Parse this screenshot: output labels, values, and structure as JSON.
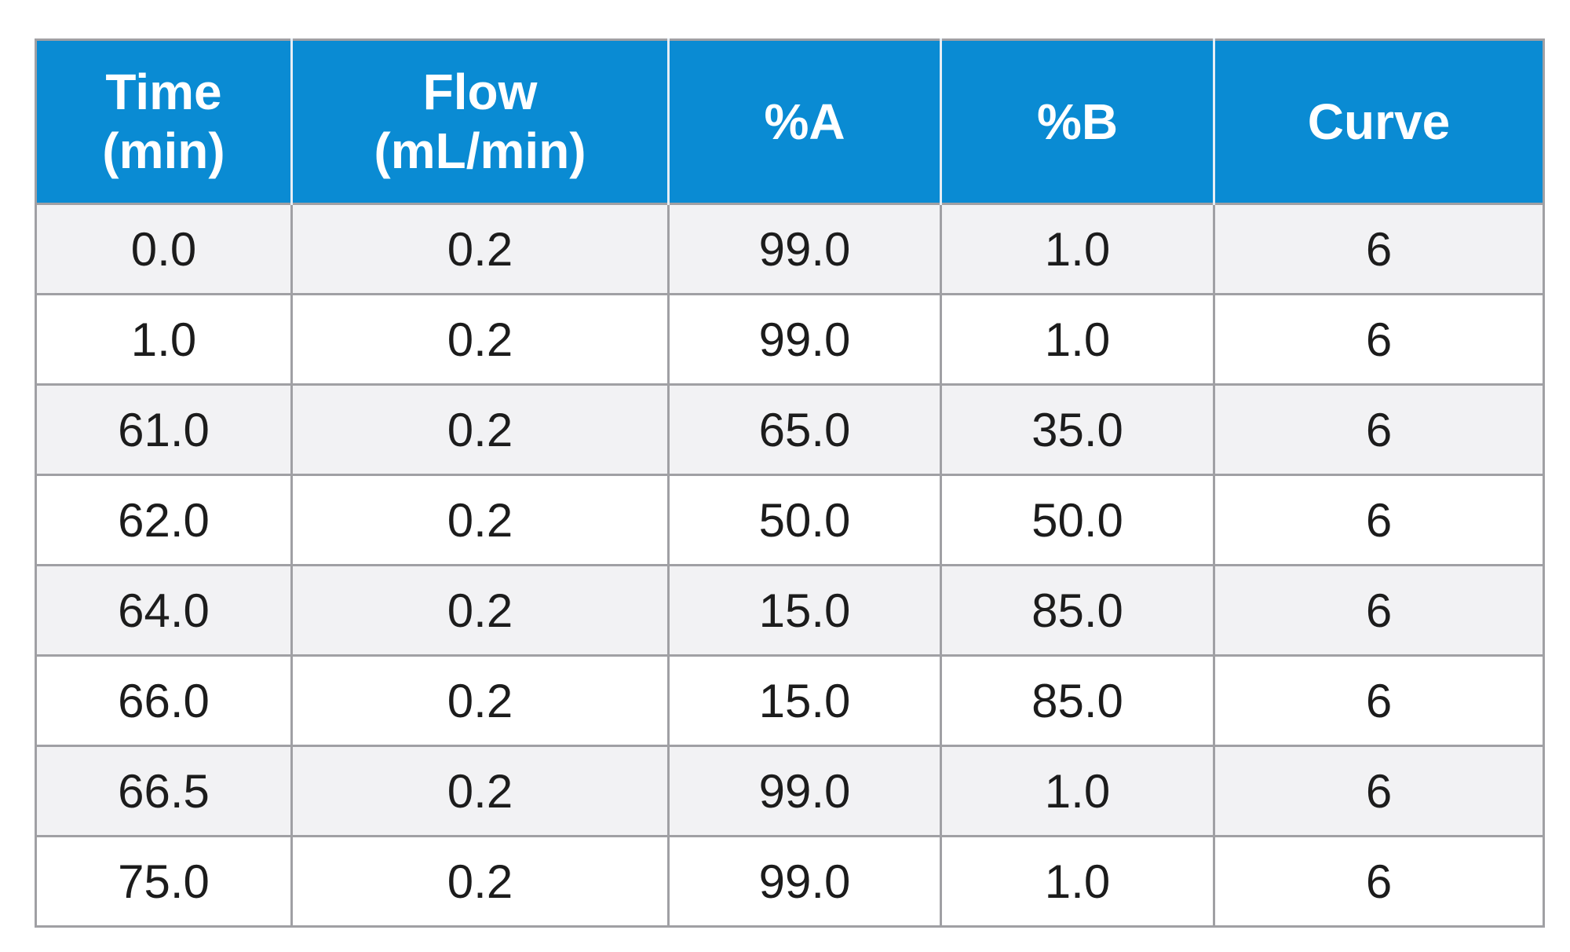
{
  "table": {
    "header": [
      "Time\n(min)",
      "Flow\n(mL/min)",
      "%A",
      "%B",
      "Curve"
    ],
    "rows": [
      [
        "0.0",
        "0.2",
        "99.0",
        "1.0",
        "6"
      ],
      [
        "1.0",
        "0.2",
        "99.0",
        "1.0",
        "6"
      ],
      [
        "61.0",
        "0.2",
        "65.0",
        "35.0",
        "6"
      ],
      [
        "62.0",
        "0.2",
        "50.0",
        "50.0",
        "6"
      ],
      [
        "64.0",
        "0.2",
        "15.0",
        "85.0",
        "6"
      ],
      [
        "66.0",
        "0.2",
        "15.0",
        "85.0",
        "6"
      ],
      [
        "66.5",
        "0.2",
        "99.0",
        "1.0",
        "6"
      ],
      [
        "75.0",
        "0.2",
        "99.0",
        "1.0",
        "6"
      ]
    ]
  }
}
